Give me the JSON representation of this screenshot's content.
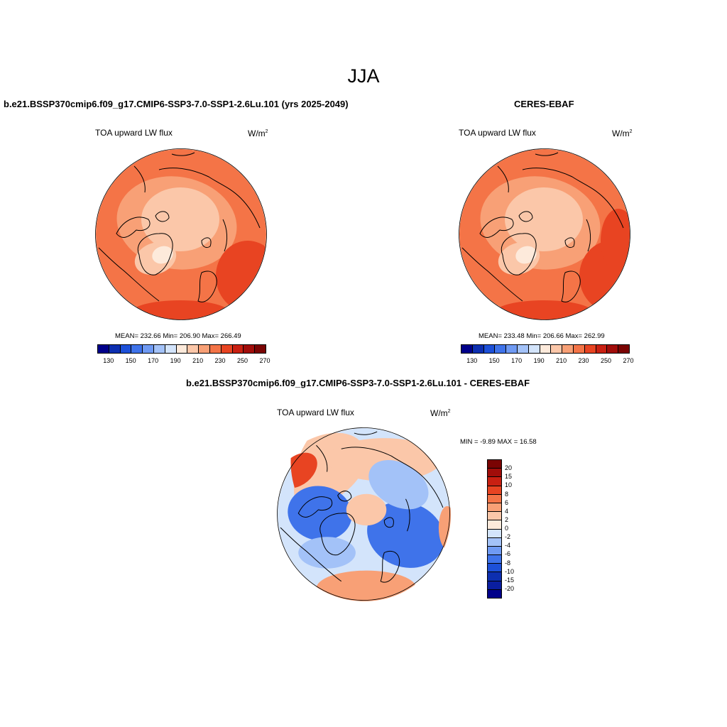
{
  "figure": {
    "title": "JJA"
  },
  "panels": [
    {
      "id": "model",
      "title": "b.e21.BSSP370cmip6.f09_g17.CMIP6-SSP3-7.0-SSP1-2.6Lu.101 (yrs 2025-2049)",
      "variable": "TOA upward LW flux",
      "units": "W/m",
      "units_exp": "2",
      "stats": "MEAN= 232.66  Min= 206.90  Max= 266.49"
    },
    {
      "id": "obs",
      "title": "CERES-EBAF",
      "variable": "TOA upward LW flux",
      "units": "W/m",
      "units_exp": "2",
      "stats": "MEAN= 233.48  Min= 206.66  Max= 262.99"
    },
    {
      "id": "diff",
      "title": "b.e21.BSSP370cmip6.f09_g17.CMIP6-SSP3-7.0-SSP1-2.6Lu.101 - CERES-EBAF",
      "variable": "TOA upward LW flux",
      "units": "W/m",
      "units_exp": "2",
      "stats": "MIN =  -9.89 MAX =  16.58"
    }
  ],
  "abs_colorbar": {
    "colors": [
      "#00008a",
      "#0d2fb0",
      "#1d50d8",
      "#3f73ea",
      "#6f9af3",
      "#a3c2f8",
      "#d3e4fb",
      "#fdeadb",
      "#fbc7a9",
      "#f8a076",
      "#f47447",
      "#e84422",
      "#c92012",
      "#a10d0a",
      "#7a0403"
    ],
    "tick_labels": [
      "130",
      "150",
      "170",
      "190",
      "210",
      "230",
      "250",
      "270"
    ]
  },
  "diff_colorbar": {
    "colors": [
      "#7a0403",
      "#a10d0a",
      "#c92012",
      "#e84422",
      "#f47447",
      "#f8a076",
      "#fbc7a9",
      "#fdeadb",
      "#d3e4fb",
      "#a3c2f8",
      "#6f9af3",
      "#3f73ea",
      "#1d50d8",
      "#0d2fb0",
      "#0a1ea0",
      "#00008a"
    ],
    "labels": [
      "20",
      "15",
      "10",
      "8",
      "6",
      "4",
      "2",
      "0",
      "-2",
      "-4",
      "-6",
      "-8",
      "-10",
      "-15",
      "-20"
    ]
  },
  "map_colors": {
    "background_warm": "#f47447",
    "mid_warm": "#f8a076",
    "light_warm": "#fbc7a9",
    "pale": "#fdeadb",
    "hot": "#e84422",
    "diff_blue": "#3f73ea",
    "diff_light_blue": "#a3c2f8",
    "diff_pale_blue": "#d3e4fb"
  }
}
